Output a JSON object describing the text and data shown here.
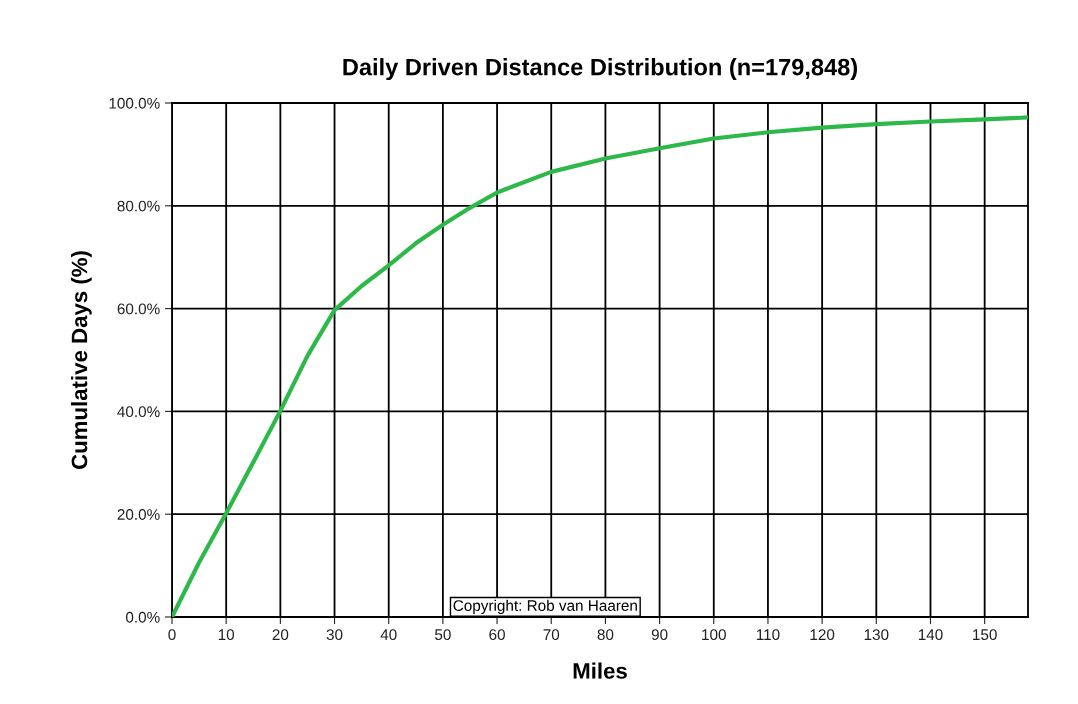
{
  "chart_data": {
    "type": "line",
    "title": "Daily Driven Distance Distribution (n=179,848)",
    "xlabel": "Miles",
    "ylabel": "Cumulative Days (%)",
    "x": [
      0,
      5,
      10,
      15,
      20,
      25,
      30,
      35,
      40,
      45,
      50,
      55,
      60,
      70,
      80,
      90,
      100,
      110,
      120,
      130,
      140,
      150,
      158
    ],
    "series": [
      {
        "color": "#2db84a",
        "values": [
          0,
          10.6,
          20.2,
          30.1,
          40.1,
          50.8,
          59.7,
          64.4,
          68.4,
          72.7,
          76.3,
          79.6,
          82.6,
          86.6,
          89.2,
          91.2,
          93.1,
          94.3,
          95.2,
          95.9,
          96.4,
          96.8,
          97.2
        ]
      }
    ],
    "xlim": [
      0,
      158
    ],
    "xticks": [
      0,
      10,
      20,
      30,
      40,
      50,
      60,
      70,
      80,
      90,
      100,
      110,
      120,
      130,
      140,
      150
    ],
    "ylim": [
      0,
      100
    ],
    "yticks": [
      {
        "value": 0,
        "label": "0.0%"
      },
      {
        "value": 20,
        "label": "20.0%"
      },
      {
        "value": 40,
        "label": "40.0%"
      },
      {
        "value": 60,
        "label": "60.0%"
      },
      {
        "value": 80,
        "label": "80.0%"
      },
      {
        "value": 100,
        "label": "100.0%"
      }
    ],
    "grid": true,
    "marker": "none",
    "line_style": "solid",
    "annotations": [
      "Copyright: Rob van Haaren"
    ]
  }
}
